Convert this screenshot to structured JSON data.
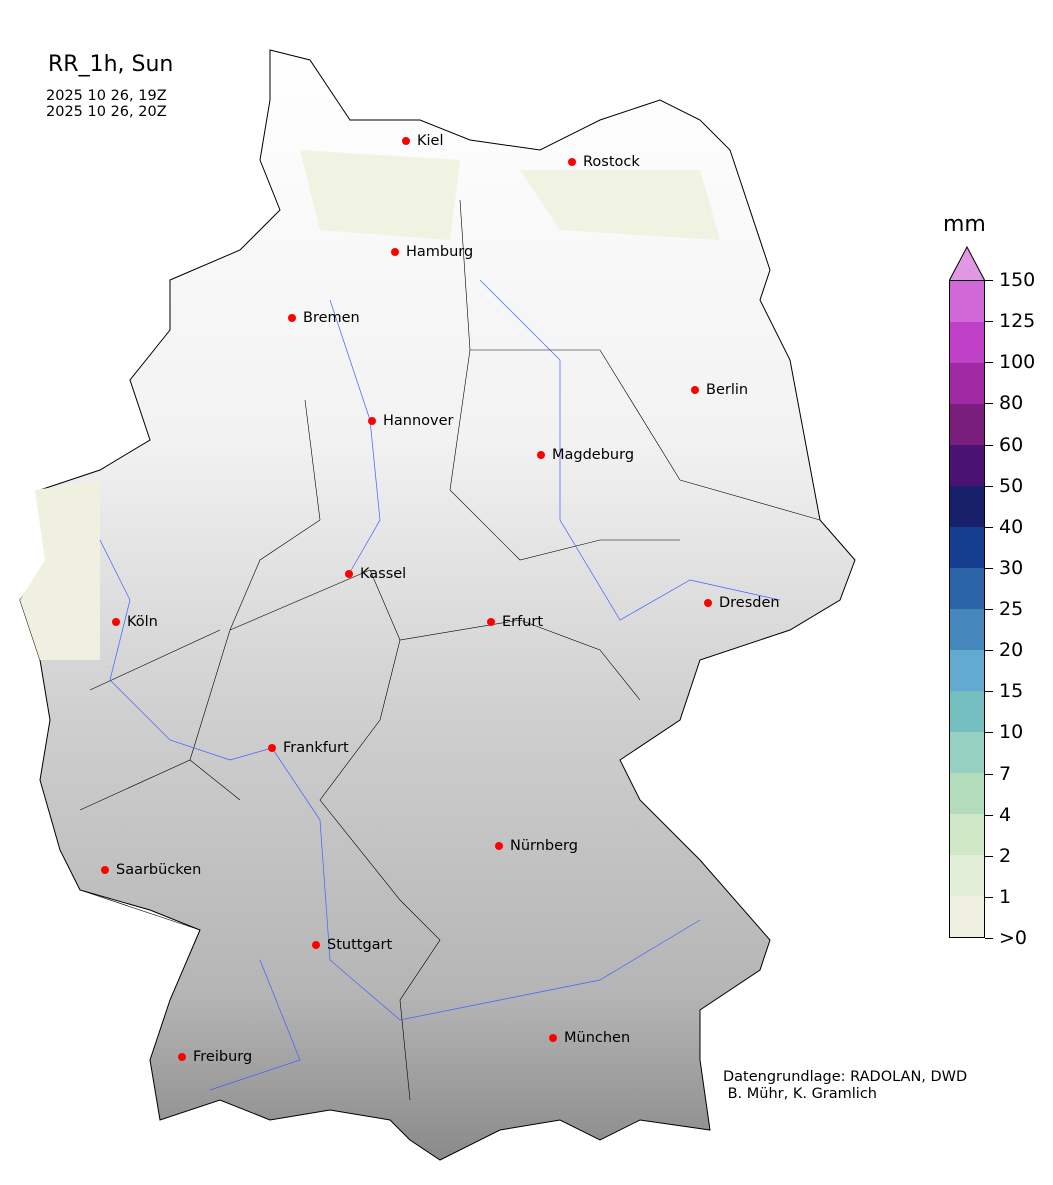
{
  "title": "RR_1h, Sun",
  "times": [
    "2025 10 26, 19Z",
    "2025 10 26, 20Z"
  ],
  "colorbar": {
    "unit": "mm",
    "labels": [
      ">0",
      "1",
      "2",
      "4",
      "7",
      "10",
      "15",
      "20",
      "25",
      "30",
      "40",
      "50",
      "60",
      "80",
      "100",
      "125",
      "150"
    ],
    "colors": [
      "#f0f0e0",
      "#e2eed8",
      "#d0e8c6",
      "#b2dcbc",
      "#96d0c0",
      "#74bec0",
      "#62aad0",
      "#4688bc",
      "#2c64a8",
      "#163e90",
      "#18206a",
      "#4a1272",
      "#7a1e7e",
      "#a02aa4",
      "#c040c8",
      "#d068d8"
    ],
    "extend_color": "#e098e4"
  },
  "cities": [
    {
      "name": "Kiel"
    },
    {
      "name": "Rostock"
    },
    {
      "name": "Hamburg"
    },
    {
      "name": "Bremen"
    },
    {
      "name": "Berlin"
    },
    {
      "name": "Hannover"
    },
    {
      "name": "Magdeburg"
    },
    {
      "name": "Kassel"
    },
    {
      "name": "Köln"
    },
    {
      "name": "Erfurt"
    },
    {
      "name": "Dresden"
    },
    {
      "name": "Frankfurt"
    },
    {
      "name": "Nürnberg"
    },
    {
      "name": "Saarbücken"
    },
    {
      "name": "Stuttgart"
    },
    {
      "name": "München"
    },
    {
      "name": "Freiburg"
    }
  ],
  "credit": "Datengrundlage: RADOLAN, DWD\n B. Mühr, K. Gramlich"
}
